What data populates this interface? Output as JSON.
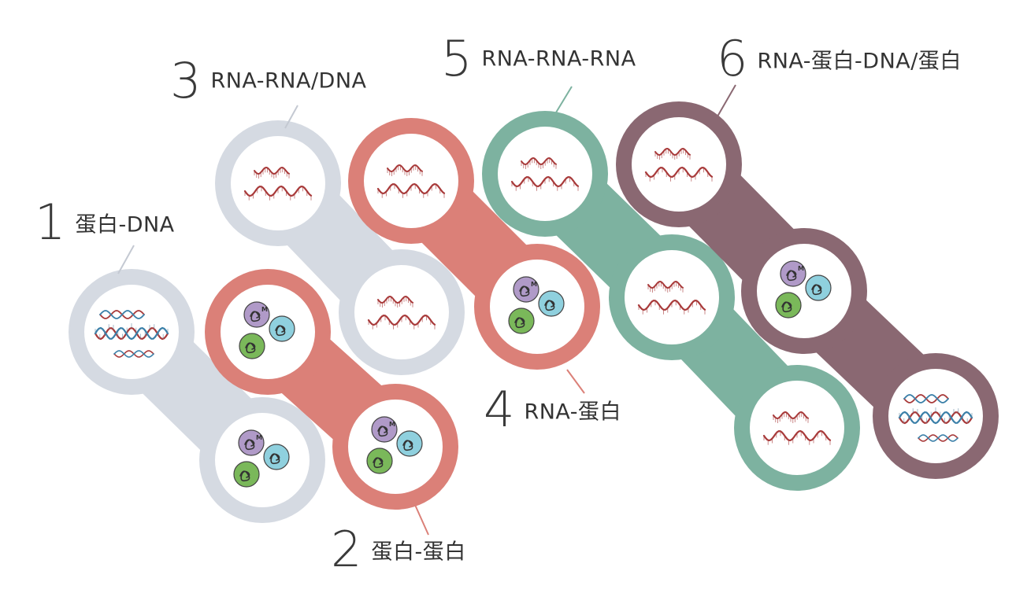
{
  "stages": [
    {
      "id": "1",
      "number": "1",
      "label": "蛋白-DNA",
      "color": "#d5dae2",
      "top": "dna-double",
      "bottom": "proteins"
    },
    {
      "id": "2",
      "number": "2",
      "label": "蛋白-蛋白",
      "color": "#db8078",
      "top": "proteins",
      "bottom": "proteins"
    },
    {
      "id": "3",
      "number": "3",
      "label": "RNA-RNA/DNA",
      "color": "#d5dae2",
      "top": "rna",
      "bottom": "rna"
    },
    {
      "id": "4",
      "number": "4",
      "label": "RNA-蛋白",
      "color": "#db8078",
      "top": "rna",
      "bottom": "proteins"
    },
    {
      "id": "5",
      "number": "5",
      "label": "RNA-RNA-RNA",
      "color": "#7db2a0",
      "top": "rna",
      "middle": "rna",
      "bottom": "rna"
    },
    {
      "id": "6",
      "number": "6",
      "label": "RNA-蛋白-DNA/蛋白",
      "color": "#8a6872",
      "top": "rna",
      "middle": "proteins",
      "bottom": "dna-double"
    }
  ],
  "molecule_colors": {
    "rna": "#a83a3a",
    "dna_strand_a": "#3a7fa8",
    "dna_strand_b": "#a83a3a",
    "protein_purple": "#b09ac8",
    "protein_blue": "#8fd0de",
    "protein_green": "#7ab85a"
  },
  "protein_letters": {
    "purple": "M",
    "blue": "",
    "green": ""
  }
}
